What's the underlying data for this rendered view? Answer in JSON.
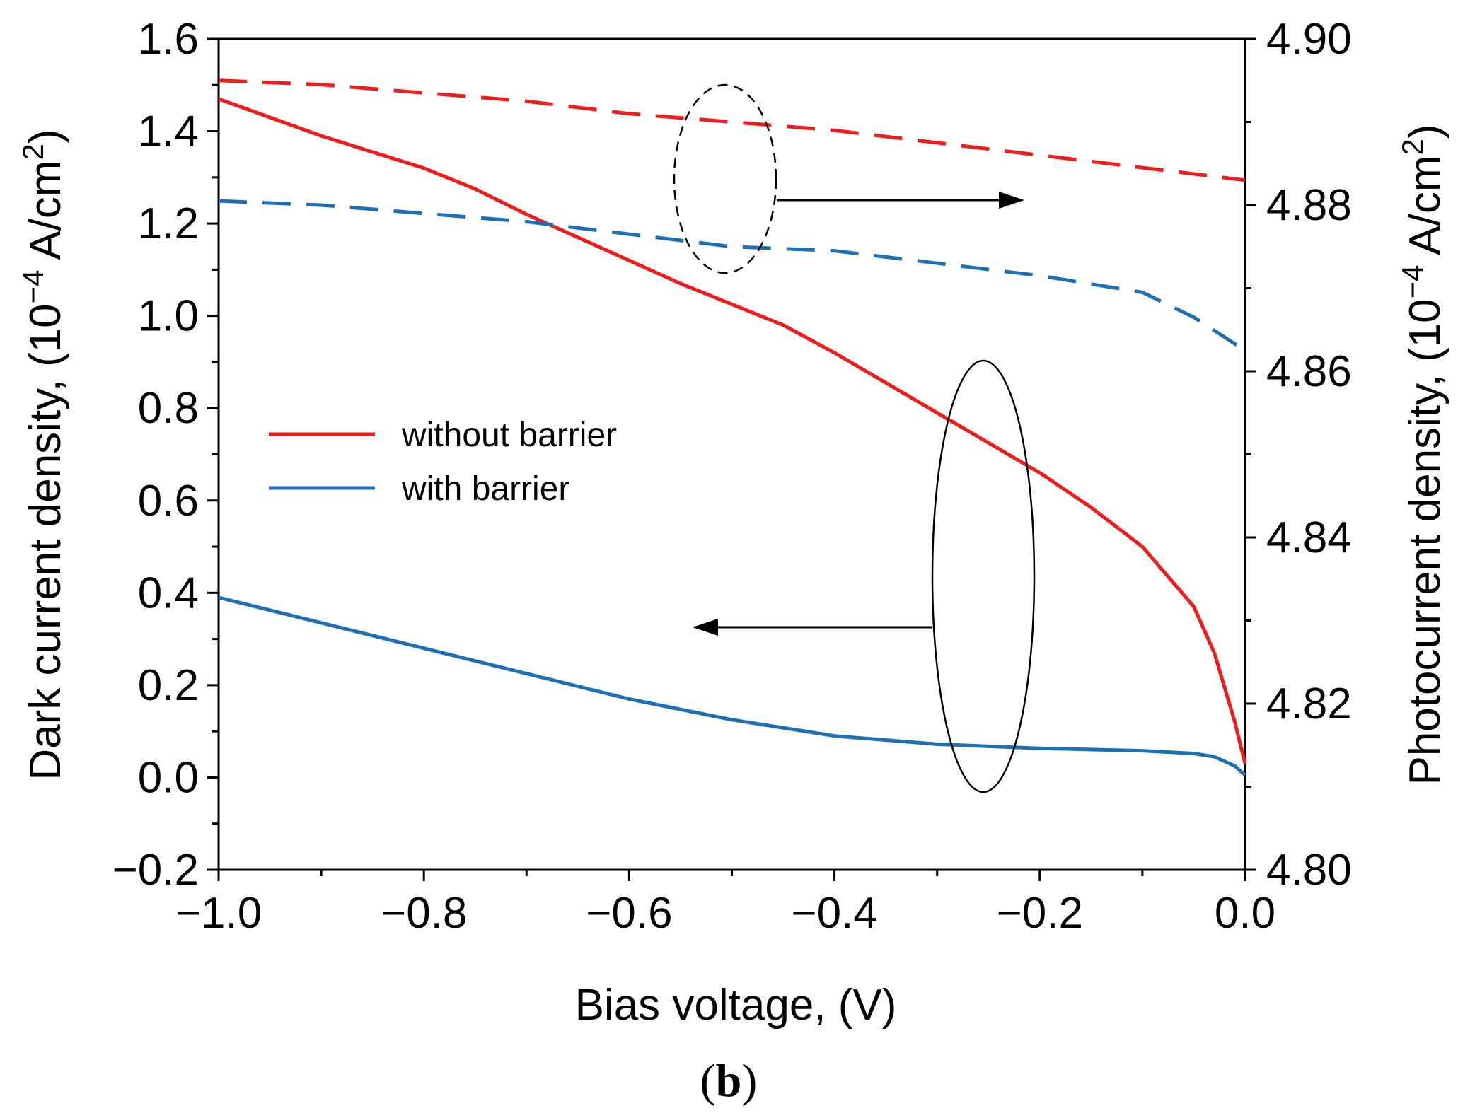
{
  "panel_label_open": "(",
  "panel_label_letter": "b",
  "panel_label_close": ")",
  "colors": {
    "red": "#ee1c1c",
    "blue": "#1f6fb3",
    "axis": "#000000"
  },
  "chart_data": {
    "type": "line",
    "xlabel": "Bias voltage, (V)",
    "ylabel_left": {
      "prefix": "Dark current density, (10",
      "exp": "−4",
      "mid": " A/cm",
      "sq": "2",
      "suffix": ")"
    },
    "ylabel_right": {
      "prefix": "Photocurrent density, (10",
      "exp": "−4",
      "mid": " A/cm",
      "sq": "2",
      "suffix": ")"
    },
    "xlim": [
      -1.0,
      0.0
    ],
    "ylim_left": [
      -0.2,
      1.6
    ],
    "ylim_right": [
      4.8,
      4.9
    ],
    "x_ticks": [
      "−1.0",
      "−0.8",
      "−0.6",
      "−0.4",
      "−0.2",
      "0.0"
    ],
    "x_tick_values": [
      -1.0,
      -0.8,
      -0.6,
      -0.4,
      -0.2,
      0.0
    ],
    "y_left_ticks": [
      "−0.2",
      "0.0",
      "0.2",
      "0.4",
      "0.6",
      "0.8",
      "1.0",
      "1.2",
      "1.4",
      "1.6"
    ],
    "y_left_tick_values": [
      -0.2,
      0.0,
      0.2,
      0.4,
      0.6,
      0.8,
      1.0,
      1.2,
      1.4,
      1.6
    ],
    "y_right_ticks": [
      "4.80",
      "4.82",
      "4.84",
      "4.86",
      "4.88",
      "4.90"
    ],
    "y_right_tick_values": [
      4.8,
      4.82,
      4.84,
      4.86,
      4.88,
      4.9
    ],
    "legend": [
      {
        "label": "without barrier",
        "color": "#ee1c1c"
      },
      {
        "label": "with barrier",
        "color": "#1f6fb3"
      }
    ],
    "series": [
      {
        "axis": "left",
        "style": "solid",
        "color": "#ee1c1c",
        "x": [
          -1.0,
          -0.9,
          -0.8,
          -0.75,
          -0.7,
          -0.65,
          -0.6,
          -0.55,
          -0.5,
          -0.45,
          -0.4,
          -0.35,
          -0.3,
          -0.25,
          -0.2,
          -0.15,
          -0.1,
          -0.05,
          -0.03,
          -0.01,
          0.0
        ],
        "y": [
          1.47,
          1.39,
          1.32,
          1.275,
          1.22,
          1.17,
          1.12,
          1.07,
          1.025,
          0.98,
          0.92,
          0.855,
          0.79,
          0.725,
          0.66,
          0.585,
          0.5,
          0.37,
          0.27,
          0.12,
          0.03
        ]
      },
      {
        "axis": "left",
        "style": "solid",
        "color": "#1f6fb3",
        "x": [
          -1.0,
          -0.9,
          -0.8,
          -0.7,
          -0.6,
          -0.5,
          -0.4,
          -0.3,
          -0.2,
          -0.1,
          -0.05,
          -0.03,
          -0.01,
          0.0
        ],
        "y": [
          0.39,
          0.335,
          0.28,
          0.225,
          0.17,
          0.125,
          0.09,
          0.072,
          0.063,
          0.058,
          0.052,
          0.045,
          0.025,
          0.005
        ]
      },
      {
        "axis": "right",
        "style": "dashed",
        "color": "#ee1c1c",
        "x": [
          -1.0,
          -0.9,
          -0.8,
          -0.7,
          -0.6,
          -0.5,
          -0.4,
          -0.3,
          -0.2,
          -0.1,
          0.0
        ],
        "y": [
          4.895,
          4.8945,
          4.8935,
          4.8925,
          4.891,
          4.89,
          4.889,
          4.8875,
          4.886,
          4.8845,
          4.883
        ]
      },
      {
        "axis": "right",
        "style": "dashed",
        "color": "#1f6fb3",
        "x": [
          -1.0,
          -0.9,
          -0.8,
          -0.7,
          -0.6,
          -0.5,
          -0.4,
          -0.3,
          -0.2,
          -0.1,
          -0.05,
          0.0
        ],
        "y": [
          4.8805,
          4.88,
          4.879,
          4.878,
          4.8765,
          4.875,
          4.8745,
          4.873,
          4.8715,
          4.8695,
          4.8665,
          4.8625
        ]
      }
    ]
  }
}
